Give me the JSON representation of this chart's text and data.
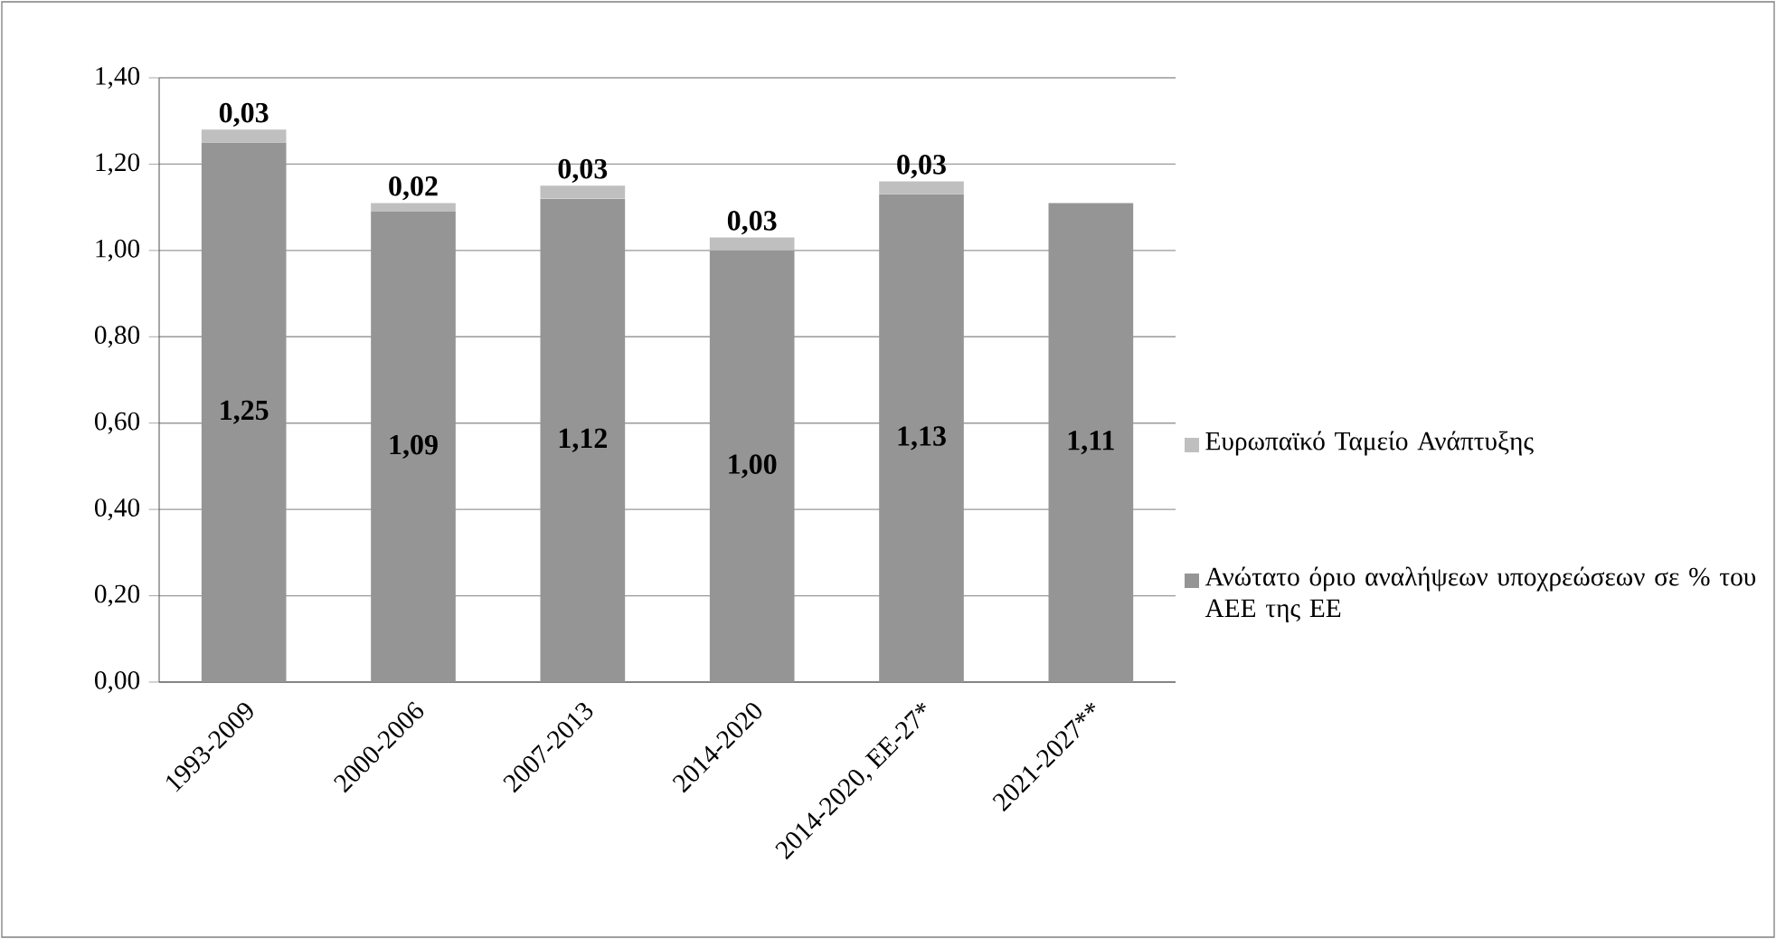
{
  "chart_data": {
    "type": "bar",
    "stacked": true,
    "categories": [
      "1993-2009",
      "2000-2006",
      "2007-2013",
      "2014-2020",
      "2014-2020, ΕΕ-27*",
      "2021-2027**"
    ],
    "series": [
      {
        "name": "Ανώτατο όριο αναλήψεων υποχρεώσεων σε % του ΑΕΕ της ΕΕ",
        "color": "#959595",
        "values": [
          1.25,
          1.09,
          1.12,
          1.0,
          1.13,
          1.11
        ],
        "value_labels": [
          "1,25",
          "1,09",
          "1,12",
          "1,00",
          "1,13",
          "1,11"
        ]
      },
      {
        "name": "Ευρωπαϊκό Ταμείο Ανάπτυξης",
        "color": "#bfbfbf",
        "values": [
          0.03,
          0.02,
          0.03,
          0.03,
          0.03,
          null
        ],
        "value_labels": [
          "0,03",
          "0,02",
          "0,03",
          "0,03",
          "0,03",
          null
        ]
      }
    ],
    "ylim": [
      0,
      1.4
    ],
    "yticks": [
      {
        "value": 0,
        "label": "0,00"
      },
      {
        "value": 0.2,
        "label": "0,20"
      },
      {
        "value": 0.4,
        "label": "0,40"
      },
      {
        "value": 0.6,
        "label": "0,60"
      },
      {
        "value": 0.8,
        "label": "0,80"
      },
      {
        "value": 1.0,
        "label": "1,00"
      },
      {
        "value": 1.2,
        "label": "1,20"
      },
      {
        "value": 1.4,
        "label": "1,40"
      }
    ],
    "grid": "y",
    "legend": "right"
  }
}
